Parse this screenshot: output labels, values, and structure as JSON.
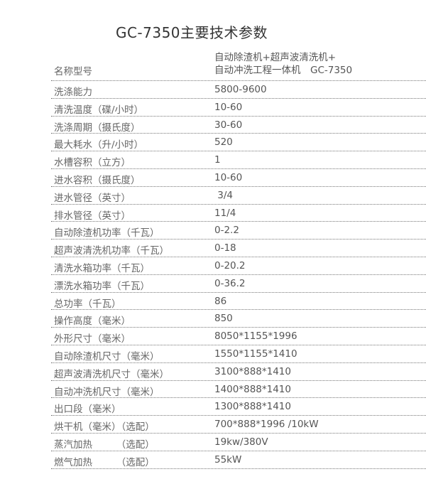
{
  "title": "GC-7350主要技术参数",
  "header": {
    "label": "名称型号",
    "value_line1": "自动除渣机+超声波清洗机+",
    "value_line2": "自动冲洗工程一体机　GC-7350"
  },
  "rows": [
    {
      "label": "洗涤能力",
      "value": "5800-9600"
    },
    {
      "label": "清洗温度（碟/小时）",
      "value": "10-60"
    },
    {
      "label": "洗涤周期（摄氏度）",
      "value": "30-60"
    },
    {
      "label": "最大耗水（升/小时）",
      "value": "520"
    },
    {
      "label": "水槽容积（立方）",
      "value": "1"
    },
    {
      "label": "进水容积（摄氏度）",
      "value": "10-60"
    },
    {
      "label": "进水管径（英寸）",
      "value": " 3/4"
    },
    {
      "label": "排水管径（英寸）",
      "value": "11/4"
    },
    {
      "label": "自动除渣机功率（千瓦）",
      "value": "0-2.2"
    },
    {
      "label": "超声波清洗机功率（千瓦）",
      "value": "0-18"
    },
    {
      "label": "清洗水箱功率（千瓦）",
      "value": "0-20.2"
    },
    {
      "label": "漂洗水箱功率（千瓦）",
      "value": "0-36.2"
    },
    {
      "label": "总功率（千瓦）",
      "value": "86"
    },
    {
      "label": "操作高度（毫米）",
      "value": "850"
    },
    {
      "label": "外形尺寸（毫米）",
      "value": "8050*1155*1996"
    },
    {
      "label": "自动除渣机尺寸（毫米）",
      "value": "1550*1155*1410"
    },
    {
      "label": "超声波清洗机尺寸（毫米）",
      "value": "3100*888*1410"
    },
    {
      "label": "自动冲洗机尺寸（毫米）",
      "value": "1400*888*1410"
    },
    {
      "label": "出口段（毫米）",
      "value": "1300*888*1410"
    },
    {
      "label": "烘干机（毫米）（选配）",
      "value": "700*888*1996 /10kW"
    },
    {
      "label": "蒸汽加热　　　（选配）",
      "value": "19kw/380V"
    },
    {
      "label": "燃气加热　　　（选配）",
      "value": "55kW"
    }
  ]
}
